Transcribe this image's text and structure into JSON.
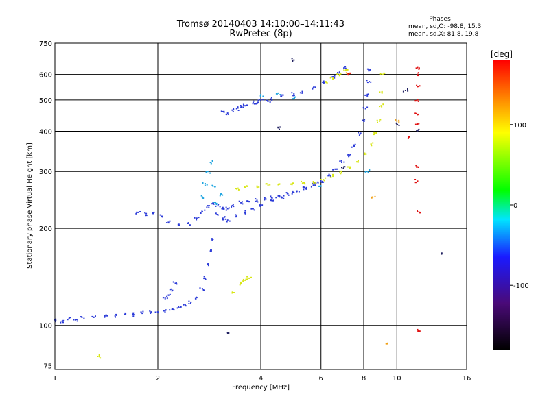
{
  "chart_data": {
    "type": "scatter",
    "title": "Tromsø 20140403 14:10:00–14:11:43",
    "subtitle": "RwPretec (8p)",
    "xlabel": "Frequency [MHz]",
    "ylabel": "Stationary phase Virtual Height [km]",
    "x_scale": "log",
    "y_scale": "log",
    "xlim": [
      1,
      16
    ],
    "ylim": [
      73,
      750
    ],
    "x_ticks": [
      1,
      2,
      4,
      6,
      8,
      10,
      16
    ],
    "y_ticks": [
      75,
      100,
      200,
      300,
      400,
      500,
      600,
      750
    ],
    "grid": true,
    "phase_info": {
      "heading": "Phases",
      "line_o": "mean, sd,O: -98.8, 15.3",
      "line_x": "mean, sd,X:  81.8, 19.8"
    },
    "colorbar": {
      "label": "[deg]",
      "range": [
        -180,
        180
      ],
      "ticks": [
        100,
        0,
        -100
      ],
      "colors": [
        "#000000",
        "#4a0a78",
        "#1a1aff",
        "#00e5ff",
        "#00ff00",
        "#ffff00",
        "#ff0000"
      ]
    },
    "series": [
      {
        "color": "#2b3bd8",
        "points": [
          [
            1.0,
            104
          ],
          [
            1.05,
            103
          ],
          [
            1.1,
            105
          ],
          [
            1.15,
            104
          ],
          [
            1.2,
            106
          ],
          [
            1.3,
            106
          ],
          [
            1.4,
            107
          ],
          [
            1.5,
            107
          ],
          [
            1.6,
            108
          ],
          [
            1.7,
            108
          ],
          [
            1.8,
            109
          ],
          [
            1.9,
            110
          ],
          [
            2.0,
            110
          ],
          [
            2.1,
            111
          ],
          [
            2.2,
            112
          ],
          [
            2.3,
            114
          ],
          [
            2.4,
            116
          ],
          [
            2.5,
            118
          ],
          [
            2.6,
            122
          ],
          [
            2.7,
            130
          ],
          [
            2.75,
            140
          ],
          [
            2.8,
            155
          ],
          [
            2.85,
            170
          ],
          [
            2.9,
            185
          ],
          [
            2.1,
            122
          ],
          [
            2.15,
            124
          ],
          [
            2.2,
            128
          ],
          [
            2.25,
            135
          ],
          [
            1.75,
            224
          ],
          [
            1.85,
            222
          ],
          [
            1.95,
            224
          ],
          [
            2.05,
            218
          ],
          [
            2.15,
            208
          ],
          [
            2.3,
            205
          ],
          [
            2.45,
            207
          ],
          [
            2.6,
            215
          ],
          [
            2.7,
            225
          ],
          [
            2.8,
            235
          ],
          [
            2.9,
            240
          ],
          [
            3.0,
            235
          ],
          [
            3.1,
            232
          ],
          [
            3.2,
            230
          ],
          [
            3.3,
            235
          ],
          [
            3.5,
            240
          ],
          [
            3.7,
            242
          ],
          [
            3.9,
            244
          ],
          [
            4.1,
            246
          ],
          [
            4.3,
            249
          ],
          [
            4.5,
            252
          ],
          [
            4.8,
            256
          ],
          [
            5.1,
            261
          ],
          [
            5.4,
            266
          ],
          [
            5.7,
            272
          ],
          [
            6.0,
            280
          ],
          [
            6.3,
            291
          ],
          [
            6.6,
            305
          ],
          [
            6.9,
            320
          ],
          [
            7.2,
            338
          ],
          [
            7.5,
            360
          ],
          [
            7.8,
            392
          ],
          [
            8.0,
            430
          ],
          [
            8.1,
            470
          ],
          [
            8.2,
            520
          ],
          [
            8.3,
            570
          ],
          [
            8.35,
            620
          ],
          [
            3.0,
            220
          ],
          [
            3.1,
            215
          ],
          [
            3.2,
            212
          ],
          [
            3.4,
            218
          ],
          [
            3.6,
            224
          ],
          [
            3.8,
            230
          ],
          [
            4.0,
            236
          ],
          [
            4.3,
            244
          ],
          [
            4.6,
            250
          ],
          [
            5.0,
            258
          ],
          [
            5.4,
            266
          ],
          [
            5.8,
            276
          ],
          [
            3.1,
            460
          ],
          [
            3.3,
            465
          ],
          [
            3.5,
            475
          ],
          [
            3.8,
            490
          ],
          [
            4.0,
            497
          ],
          [
            4.3,
            503
          ],
          [
            4.6,
            512
          ],
          [
            5.0,
            522
          ],
          [
            5.3,
            530
          ],
          [
            5.7,
            545
          ],
          [
            6.1,
            565
          ],
          [
            6.5,
            590
          ],
          [
            6.8,
            610
          ],
          [
            7.0,
            628
          ],
          [
            3.2,
            455
          ],
          [
            3.4,
            470
          ],
          [
            3.6,
            480
          ],
          [
            3.9,
            488
          ],
          [
            4.2,
            495
          ]
        ]
      },
      {
        "color": "#1fa5e0",
        "points": [
          [
            2.7,
            250
          ],
          [
            2.75,
            275
          ],
          [
            2.8,
            300
          ],
          [
            2.85,
            320
          ],
          [
            2.9,
            270
          ],
          [
            2.95,
            240
          ],
          [
            3.05,
            255
          ],
          [
            4.0,
            515
          ],
          [
            4.5,
            525
          ],
          [
            5.0,
            505
          ],
          [
            6.0,
            270
          ],
          [
            8.2,
            300
          ]
        ]
      },
      {
        "color": "#d8e614",
        "points": [
          [
            3.4,
            265
          ],
          [
            3.6,
            268
          ],
          [
            3.9,
            270
          ],
          [
            4.2,
            272
          ],
          [
            4.5,
            273
          ],
          [
            4.9,
            274
          ],
          [
            5.3,
            276
          ],
          [
            5.7,
            279
          ],
          [
            6.1,
            283
          ],
          [
            6.5,
            290
          ],
          [
            6.9,
            298
          ],
          [
            7.3,
            308
          ],
          [
            7.7,
            322
          ],
          [
            8.1,
            340
          ],
          [
            8.4,
            365
          ],
          [
            8.7,
            395
          ],
          [
            8.9,
            430
          ],
          [
            9.0,
            480
          ],
          [
            9.05,
            530
          ],
          [
            9.1,
            600
          ],
          [
            6.2,
            570
          ],
          [
            6.5,
            580
          ],
          [
            6.8,
            595
          ],
          [
            7.1,
            620
          ],
          [
            3.6,
            138
          ],
          [
            3.7,
            140
          ],
          [
            3.5,
            135
          ],
          [
            3.3,
            126
          ],
          [
            1.35,
            80
          ]
        ]
      },
      {
        "color": "#f0a015",
        "points": [
          [
            8.5,
            250
          ],
          [
            9.4,
            88
          ],
          [
            7.2,
            600
          ],
          [
            10.0,
            430
          ]
        ]
      },
      {
        "color": "#e01010",
        "points": [
          [
            11.5,
            630
          ],
          [
            11.5,
            600
          ],
          [
            11.5,
            550
          ],
          [
            11.5,
            500
          ],
          [
            11.5,
            450
          ],
          [
            11.5,
            420
          ],
          [
            11.5,
            310
          ],
          [
            11.5,
            280
          ],
          [
            11.5,
            225
          ],
          [
            11.5,
            97
          ],
          [
            10.8,
            380
          ],
          [
            7.2,
            600
          ]
        ]
      },
      {
        "color": "#202060",
        "points": [
          [
            4.5,
            410
          ],
          [
            10.0,
            420
          ],
          [
            11.6,
            405
          ],
          [
            10.6,
            535
          ],
          [
            13.5,
            167
          ],
          [
            5.0,
            665
          ],
          [
            3.2,
            95
          ],
          [
            7.0,
            310
          ]
        ]
      }
    ]
  }
}
